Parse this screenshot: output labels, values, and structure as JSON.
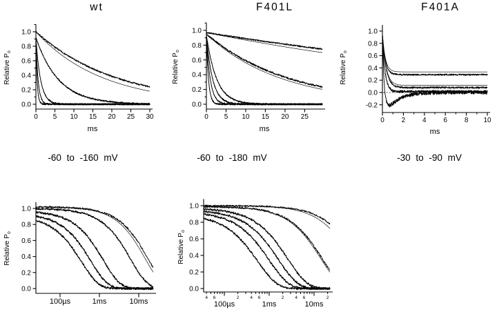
{
  "figure": {
    "description_visible_text_only": true,
    "panel_titles": [
      "wt",
      "F401L",
      "F401A"
    ],
    "y_axis_label": {
      "main": "Relative P",
      "sub": "o"
    },
    "time_axis_unit": "ms"
  },
  "captions": [
    "-60  to  -160  mV",
    "-60  to  -180  mV",
    "-30  to  -90  mV"
  ],
  "colors": {
    "trace": "#000000",
    "axis": "#000000",
    "background": "#ffffff"
  },
  "chart_data": [
    {
      "key": "wt-linear",
      "type": "line",
      "title": "wt",
      "xlabel": "ms",
      "ylabel": "Relative P",
      "ylabel_sub": "o",
      "xscale": "linear",
      "xlim": [
        0,
        30
      ],
      "ylim": [
        -0.05,
        1.1
      ],
      "xticks": [
        {
          "v": 0,
          "label": "0"
        },
        {
          "v": 5,
          "label": "5"
        },
        {
          "v": 10,
          "label": "10"
        },
        {
          "v": 15,
          "label": "15"
        },
        {
          "v": 20,
          "label": "20"
        },
        {
          "v": 25,
          "label": "25"
        },
        {
          "v": 30,
          "label": "30"
        }
      ],
      "yticks": [
        {
          "v": 0,
          "label": "0.0"
        },
        {
          "v": 0.2,
          "label": "0.2"
        },
        {
          "v": 0.4,
          "label": "0.4"
        },
        {
          "v": 0.6,
          "label": "0.6"
        },
        {
          "v": 0.8,
          "label": "0.8"
        },
        {
          "v": 1.0,
          "label": "1.0"
        }
      ],
      "yticks_minor": [
        0.1,
        0.3,
        0.5,
        0.7,
        0.9,
        1.1
      ],
      "grid": false,
      "series": [
        {
          "initial": 1.0,
          "tau_ms": 21.0,
          "fit_tau_ms": 17.5,
          "plateau": 0,
          "noise": 0.011
        },
        {
          "initial": 0.92,
          "tau_ms": 6.0,
          "plateau": 0,
          "noise": 0.011
        },
        {
          "initial": 0.92,
          "tau_ms": 1.25,
          "plateau": 0,
          "noise": 0.011
        },
        {
          "initial": 0.9,
          "tau_ms": 0.6,
          "plateau": 0,
          "noise": 0.011
        },
        {
          "initial": 0.9,
          "tau_ms": 0.33,
          "plateau": 0,
          "noise": 0.011
        }
      ]
    },
    {
      "key": "f401l-linear",
      "type": "line",
      "title": "F401L",
      "xlabel": "ms",
      "ylabel": "Relative P",
      "ylabel_sub": "o",
      "xscale": "linear",
      "xlim": [
        0,
        29.5
      ],
      "ylim": [
        -0.05,
        1.1
      ],
      "xticks": [
        {
          "v": 0,
          "label": "0"
        },
        {
          "v": 5,
          "label": "5"
        },
        {
          "v": 10,
          "label": "10"
        },
        {
          "v": 15,
          "label": "15"
        },
        {
          "v": 20,
          "label": "20"
        },
        {
          "v": 25,
          "label": "25"
        }
      ],
      "yticks": [
        {
          "v": 0,
          "label": "0.0"
        },
        {
          "v": 0.2,
          "label": "0.2"
        },
        {
          "v": 0.4,
          "label": "0.4"
        },
        {
          "v": 0.6,
          "label": "0.6"
        },
        {
          "v": 0.8,
          "label": "0.8"
        },
        {
          "v": 1.0,
          "label": "1.0"
        }
      ],
      "yticks_minor": [
        0.1,
        0.3,
        0.5,
        0.7,
        0.9,
        1.1
      ],
      "grid": false,
      "series": [
        {
          "initial": 0.97,
          "tau_ms": 113.0,
          "fit_tau_ms": 90.0,
          "plateau": 0,
          "noise": 0.01
        },
        {
          "initial": 0.95,
          "tau_ms": 21.0,
          "fit_tau_ms": 19.0,
          "plateau": 0,
          "noise": 0.012
        },
        {
          "initial": 0.94,
          "tau_ms": 2.6,
          "plateau": 0,
          "noise": 0.011
        },
        {
          "initial": 0.93,
          "tau_ms": 1.6,
          "plateau": 0,
          "noise": 0.011
        },
        {
          "initial": 0.92,
          "tau_ms": 1.0,
          "plateau": 0,
          "noise": 0.011
        },
        {
          "initial": 0.9,
          "tau_ms": 0.55,
          "plateau": 0,
          "noise": 0.011
        }
      ]
    },
    {
      "key": "f401a-linear",
      "type": "line",
      "title": "F401A",
      "xlabel": "ms",
      "ylabel": "Relative P",
      "ylabel_sub": "o",
      "xscale": "linear",
      "xlim": [
        0,
        10
      ],
      "ylim": [
        -0.3,
        1.1
      ],
      "zero_dashed": true,
      "xticks": [
        {
          "v": 0,
          "label": "0"
        },
        {
          "v": 2,
          "label": "2"
        },
        {
          "v": 4,
          "label": "4"
        },
        {
          "v": 6,
          "label": "6"
        },
        {
          "v": 8,
          "label": "8"
        },
        {
          "v": 10,
          "label": "10"
        }
      ],
      "xticks_minor": [
        1,
        3,
        5,
        7,
        9
      ],
      "yticks": [
        {
          "v": -0.2,
          "label": "-0.2"
        },
        {
          "v": 0,
          "label": "0.0"
        },
        {
          "v": 0.2,
          "label": "0.2"
        },
        {
          "v": 0.4,
          "label": "0.4"
        },
        {
          "v": 0.6,
          "label": "0.6"
        },
        {
          "v": 0.8,
          "label": "0.8"
        },
        {
          "v": 1.0,
          "label": "1.0"
        }
      ],
      "grid": false,
      "series": [
        {
          "initial": 0.95,
          "tau_ms": 0.28,
          "plateau": 0.29,
          "fit_plateau": 0.335,
          "noise": 0.013
        },
        {
          "initial": 0.95,
          "tau_ms": 0.35,
          "plateau": 0.08,
          "fit_plateau": 0.115,
          "noise": 0.015
        },
        {
          "initial": 0.93,
          "tau_ms": 0.25,
          "plateau": 0.015,
          "noise": 0.022
        },
        {
          "initial": 0.95,
          "tau_ms": 0.18,
          "undershoot_C": 0.45,
          "recovery_tau_ms": 1.1,
          "has_fit": false,
          "noise": 0.03
        }
      ]
    },
    {
      "key": "wt-log",
      "type": "line",
      "title": "",
      "xlabel": "",
      "ylabel": "Relative P",
      "ylabel_sub": "o",
      "xscale": "log",
      "xlim_ms": [
        0.0243,
        23.3
      ],
      "ylim": [
        -0.05,
        1.1
      ],
      "xticks": [
        {
          "v": 0.1,
          "label": "100µs"
        },
        {
          "v": 1,
          "label": "1ms"
        },
        {
          "v": 10,
          "label": "10ms"
        }
      ],
      "yticks": [
        {
          "v": 0,
          "label": "0.0"
        },
        {
          "v": 0.2,
          "label": "0.2"
        },
        {
          "v": 0.4,
          "label": "0.4"
        },
        {
          "v": 0.6,
          "label": "0.6"
        },
        {
          "v": 0.8,
          "label": "0.8"
        },
        {
          "v": 1.0,
          "label": "1.0"
        }
      ],
      "grid": false,
      "series": [
        {
          "initial": 1.02,
          "tau_ms": 17.0,
          "fit_tau_ms": 14.5,
          "plateau": 0,
          "noise": 0.012
        },
        {
          "initial": 1.0,
          "tau_ms": 6.2,
          "plateau": 0,
          "noise": 0.013
        },
        {
          "initial": 0.97,
          "tau_ms": 1.25,
          "plateau": 0,
          "noise": 0.015
        },
        {
          "initial": 0.94,
          "tau_ms": 0.6,
          "plateau": 0,
          "noise": 0.015
        },
        {
          "initial": 0.91,
          "tau_ms": 0.35,
          "plateau": 0,
          "noise": 0.015
        }
      ]
    },
    {
      "key": "f401l-log",
      "type": "line",
      "title": "",
      "xlabel": "",
      "ylabel": "Relative P",
      "ylabel_sub": "o",
      "xscale": "log",
      "xlim_ms": [
        0.0345,
        22.6
      ],
      "ylim": [
        -0.05,
        1.1
      ],
      "xticks": [
        {
          "v": 0.1,
          "label": "100µs"
        },
        {
          "v": 1,
          "label": "1ms"
        },
        {
          "v": 10,
          "label": "10ms"
        }
      ],
      "xticks_minor_log": [
        {
          "v": 0.04,
          "label": "4"
        },
        {
          "v": 0.05
        },
        {
          "v": 0.06,
          "label": "6"
        },
        {
          "v": 0.07
        },
        {
          "v": 0.08
        },
        {
          "v": 0.09
        },
        {
          "v": 0.2,
          "label": "2"
        },
        {
          "v": 0.3
        },
        {
          "v": 0.4,
          "label": "4"
        },
        {
          "v": 0.5
        },
        {
          "v": 0.6,
          "label": "6"
        },
        {
          "v": 0.7
        },
        {
          "v": 0.8
        },
        {
          "v": 0.9
        },
        {
          "v": 2,
          "label": "2"
        },
        {
          "v": 3
        },
        {
          "v": 4,
          "label": "4"
        },
        {
          "v": 5
        },
        {
          "v": 6,
          "label": "6"
        },
        {
          "v": 7
        },
        {
          "v": 8
        },
        {
          "v": 9
        },
        {
          "v": 20,
          "label": "2"
        }
      ],
      "yticks": [
        {
          "v": 0,
          "label": "0.0"
        },
        {
          "v": 0.2,
          "label": "0.2"
        },
        {
          "v": 0.4,
          "label": "0.4"
        },
        {
          "v": 0.6,
          "label": "0.6"
        },
        {
          "v": 0.8,
          "label": "0.8"
        },
        {
          "v": 1.0,
          "label": "1.0"
        }
      ],
      "grid": false,
      "series": [
        {
          "initial": 1.0,
          "tau_ms": 90.0,
          "fit_tau_ms": 70.0,
          "plateau": 0,
          "noise": 0.01
        },
        {
          "initial": 0.99,
          "tau_ms": 15.0,
          "fit_tau_ms": 14.0,
          "plateau": 0,
          "noise": 0.012
        },
        {
          "initial": 0.97,
          "tau_ms": 2.6,
          "plateau": 0,
          "noise": 0.014
        },
        {
          "initial": 0.95,
          "tau_ms": 1.6,
          "plateau": 0,
          "noise": 0.014
        },
        {
          "initial": 0.93,
          "tau_ms": 1.0,
          "plateau": 0,
          "noise": 0.014
        },
        {
          "initial": 0.9,
          "tau_ms": 0.55,
          "plateau": 0,
          "noise": 0.014
        }
      ]
    }
  ]
}
